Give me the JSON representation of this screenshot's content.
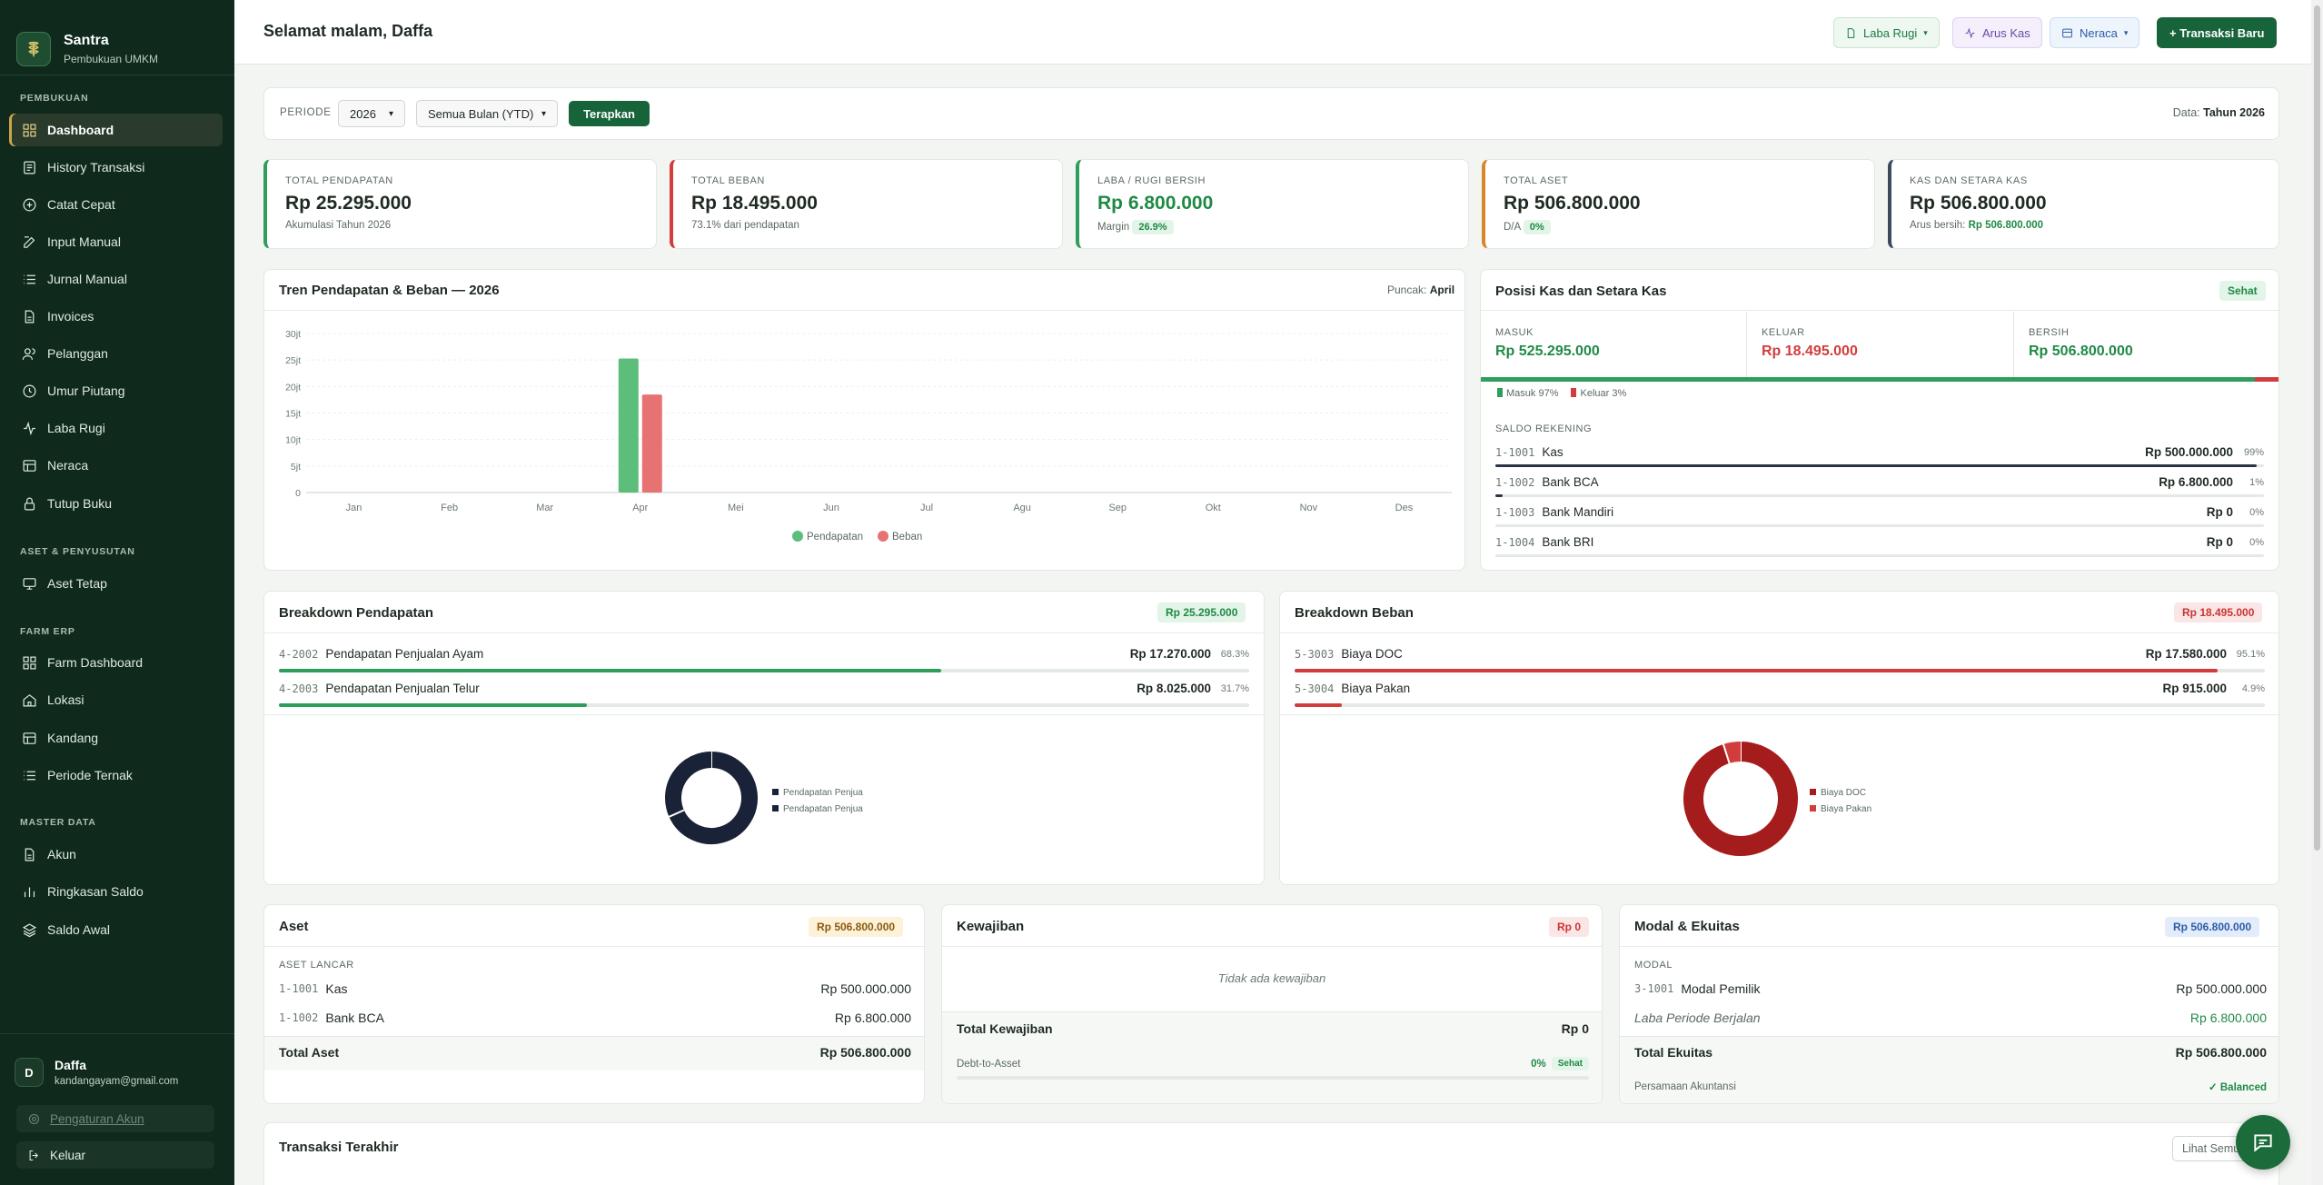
{
  "app": {
    "name": "Santra",
    "subtitle": "Pembukuan UMKM"
  },
  "sidebar": {
    "sections": [
      "PEMBUKUAN",
      "ASET & PENYUSUTAN",
      "FARM ERP",
      "MASTER DATA"
    ],
    "items": [
      {
        "label": "Dashboard",
        "icon": "grid-icon"
      },
      {
        "label": "History Transaksi",
        "icon": "history-icon"
      },
      {
        "label": "Catat Cepat",
        "icon": "plus-circle-icon"
      },
      {
        "label": "Input Manual",
        "icon": "edit-icon"
      },
      {
        "label": "Jurnal Manual",
        "icon": "list-icon"
      },
      {
        "label": "Invoices",
        "icon": "file-icon"
      },
      {
        "label": "Pelanggan",
        "icon": "users-icon"
      },
      {
        "label": "Umur Piutang",
        "icon": "clock-icon"
      },
      {
        "label": "Laba Rugi",
        "icon": "activity-icon"
      },
      {
        "label": "Neraca",
        "icon": "table-icon"
      },
      {
        "label": "Tutup Buku",
        "icon": "lock-icon"
      },
      {
        "label": "Aset Tetap",
        "icon": "monitor-icon"
      },
      {
        "label": "Farm Dashboard",
        "icon": "grid-icon"
      },
      {
        "label": "Lokasi",
        "icon": "home-icon"
      },
      {
        "label": "Kandang",
        "icon": "table-icon"
      },
      {
        "label": "Periode Ternak",
        "icon": "list-icon"
      },
      {
        "label": "Akun",
        "icon": "file-icon"
      },
      {
        "label": "Ringkasan Saldo",
        "icon": "bar-chart-icon"
      },
      {
        "label": "Saldo Awal",
        "icon": "layers-icon"
      }
    ],
    "user": {
      "initial": "D",
      "name": "Daffa",
      "email": "kandangayam@gmail.com"
    },
    "settings_label": "Pengaturan Akun",
    "logout_label": "Keluar"
  },
  "header": {
    "greeting": "Selamat malam, Daffa",
    "btn_laba": "Laba Rugi",
    "btn_arus": "Arus Kas",
    "btn_neraca": "Neraca",
    "btn_new": "+ Transaksi Baru"
  },
  "filter": {
    "label": "PERIODE",
    "year": "2026",
    "month": "Semua Bulan (YTD)",
    "apply": "Terapkan",
    "data_label": "Data:",
    "data_value": "Tahun 2026"
  },
  "kpis": [
    {
      "label": "TOTAL PENDAPATAN",
      "value": "Rp 25.295.000",
      "sub": "Akumulasi Tahun 2026",
      "accent": "#2e9e5a",
      "value_color": "#1f2a22"
    },
    {
      "label": "TOTAL BEBAN",
      "value": "Rp 18.495.000",
      "sub": "73.1% dari pendapatan",
      "accent": "#d23c3c",
      "value_color": "#1f2a22"
    },
    {
      "label": "LABA / RUGI BERSIH",
      "value": "Rp 6.800.000",
      "sub": "Margin",
      "badge": "26.9%",
      "accent": "#2e9e5a",
      "value_color": "#1f8a45"
    },
    {
      "label": "TOTAL ASET",
      "value": "Rp 506.800.000",
      "sub": "D/A",
      "badge": "0%",
      "accent": "#d8872a",
      "value_color": "#1f2a22"
    },
    {
      "label": "KAS DAN SETARA KAS",
      "value": "Rp 506.800.000",
      "sub": "Arus bersih:",
      "badge": "Rp 506.800.000",
      "accent": "#3d4a5c",
      "value_color": "#1f2a22"
    }
  ],
  "trend": {
    "title": "Tren Pendapatan & Beban — 2026",
    "peak_label": "Puncak:",
    "peak_value": "April"
  },
  "chart_data": {
    "type": "bar",
    "categories": [
      "Jan",
      "Feb",
      "Mar",
      "Apr",
      "Mei",
      "Jun",
      "Jul",
      "Agu",
      "Sep",
      "Okt",
      "Nov",
      "Des"
    ],
    "series": [
      {
        "name": "Pendapatan",
        "color": "#5dbd7a",
        "values": [
          0,
          0,
          0,
          25295000,
          0,
          0,
          0,
          0,
          0,
          0,
          0,
          0
        ]
      },
      {
        "name": "Beban",
        "color": "#e77272",
        "values": [
          0,
          0,
          0,
          18495000,
          0,
          0,
          0,
          0,
          0,
          0,
          0,
          0
        ]
      }
    ],
    "yticks": [
      "0",
      "5jt",
      "10jt",
      "15jt",
      "20jt",
      "25jt",
      "30jt"
    ],
    "ylim": [
      0,
      30000000
    ],
    "grid": true,
    "legend": "bottom"
  },
  "cash": {
    "title": "Posisi Kas dan Setara Kas",
    "status": "Sehat",
    "masuk_label": "MASUK",
    "masuk": "Rp 525.295.000",
    "keluar_label": "KELUAR",
    "keluar": "Rp 18.495.000",
    "bersih_label": "BERSIH",
    "bersih": "Rp 506.800.000",
    "masuk_pct_label": "Masuk 97%",
    "keluar_pct_label": "Keluar 3%",
    "masuk_fraction": 0.97,
    "saldo_label": "SALDO REKENING",
    "accounts": [
      {
        "code": "1-1001",
        "name": "Kas",
        "value": "Rp 500.000.000",
        "pct": "99%",
        "fraction": 0.99
      },
      {
        "code": "1-1002",
        "name": "Bank BCA",
        "value": "Rp 6.800.000",
        "pct": "1%",
        "fraction": 0.01
      },
      {
        "code": "1-1003",
        "name": "Bank Mandiri",
        "value": "Rp 0",
        "pct": "0%",
        "fraction": 0
      },
      {
        "code": "1-1004",
        "name": "Bank BRI",
        "value": "Rp 0",
        "pct": "0%",
        "fraction": 0
      }
    ]
  },
  "rev_breakdown": {
    "title": "Breakdown Pendapatan",
    "total": "Rp 25.295.000",
    "items": [
      {
        "code": "4-2002",
        "name": "Pendapatan Penjualan Ayam",
        "value": "Rp 17.270.000",
        "pct": "68.3%",
        "fraction": 0.683
      },
      {
        "code": "4-2003",
        "name": "Pendapatan Penjualan Telur",
        "value": "Rp 8.025.000",
        "pct": "31.7%",
        "fraction": 0.317
      }
    ],
    "legend": [
      "Pendapatan Penjua",
      "Pendapatan Penjua"
    ]
  },
  "exp_breakdown": {
    "title": "Breakdown Beban",
    "total": "Rp 18.495.000",
    "items": [
      {
        "code": "5-3003",
        "name": "Biaya DOC",
        "value": "Rp 17.580.000",
        "pct": "95.1%",
        "fraction": 0.951
      },
      {
        "code": "5-3004",
        "name": "Biaya Pakan",
        "value": "Rp 915.000",
        "pct": "4.9%",
        "fraction": 0.049
      }
    ],
    "legend": [
      "Biaya DOC",
      "Biaya Pakan"
    ]
  },
  "aset": {
    "title": "Aset",
    "total_badge": "Rp 506.800.000",
    "group": "ASET LANCAR",
    "rows": [
      {
        "code": "1-1001",
        "name": "Kas",
        "value": "Rp 500.000.000"
      },
      {
        "code": "1-1002",
        "name": "Bank BCA",
        "value": "Rp 6.800.000"
      }
    ],
    "total_label": "Total Aset",
    "total_value": "Rp 506.800.000"
  },
  "kewajiban": {
    "title": "Kewajiban",
    "total_badge": "Rp 0",
    "empty": "Tidak ada kewajiban",
    "total_label": "Total Kewajiban",
    "total_value": "Rp 0",
    "dta_label": "Debt-to-Asset",
    "dta_value": "0%",
    "dta_status": "Sehat"
  },
  "ekuitas": {
    "title": "Modal & Ekuitas",
    "total_badge": "Rp 506.800.000",
    "group": "MODAL",
    "row1": {
      "code": "3-1001",
      "name": "Modal Pemilik",
      "value": "Rp 500.000.000"
    },
    "row2": {
      "name": "Laba Periode Berjalan",
      "value": "Rp 6.800.000"
    },
    "total_label": "Total Ekuitas",
    "total_value": "Rp 506.800.000",
    "persamaan": "Persamaan Akuntansi",
    "balanced": "✓ Balanced"
  },
  "recent": {
    "title": "Transaksi Terakhir",
    "link": "Lihat Semua"
  }
}
